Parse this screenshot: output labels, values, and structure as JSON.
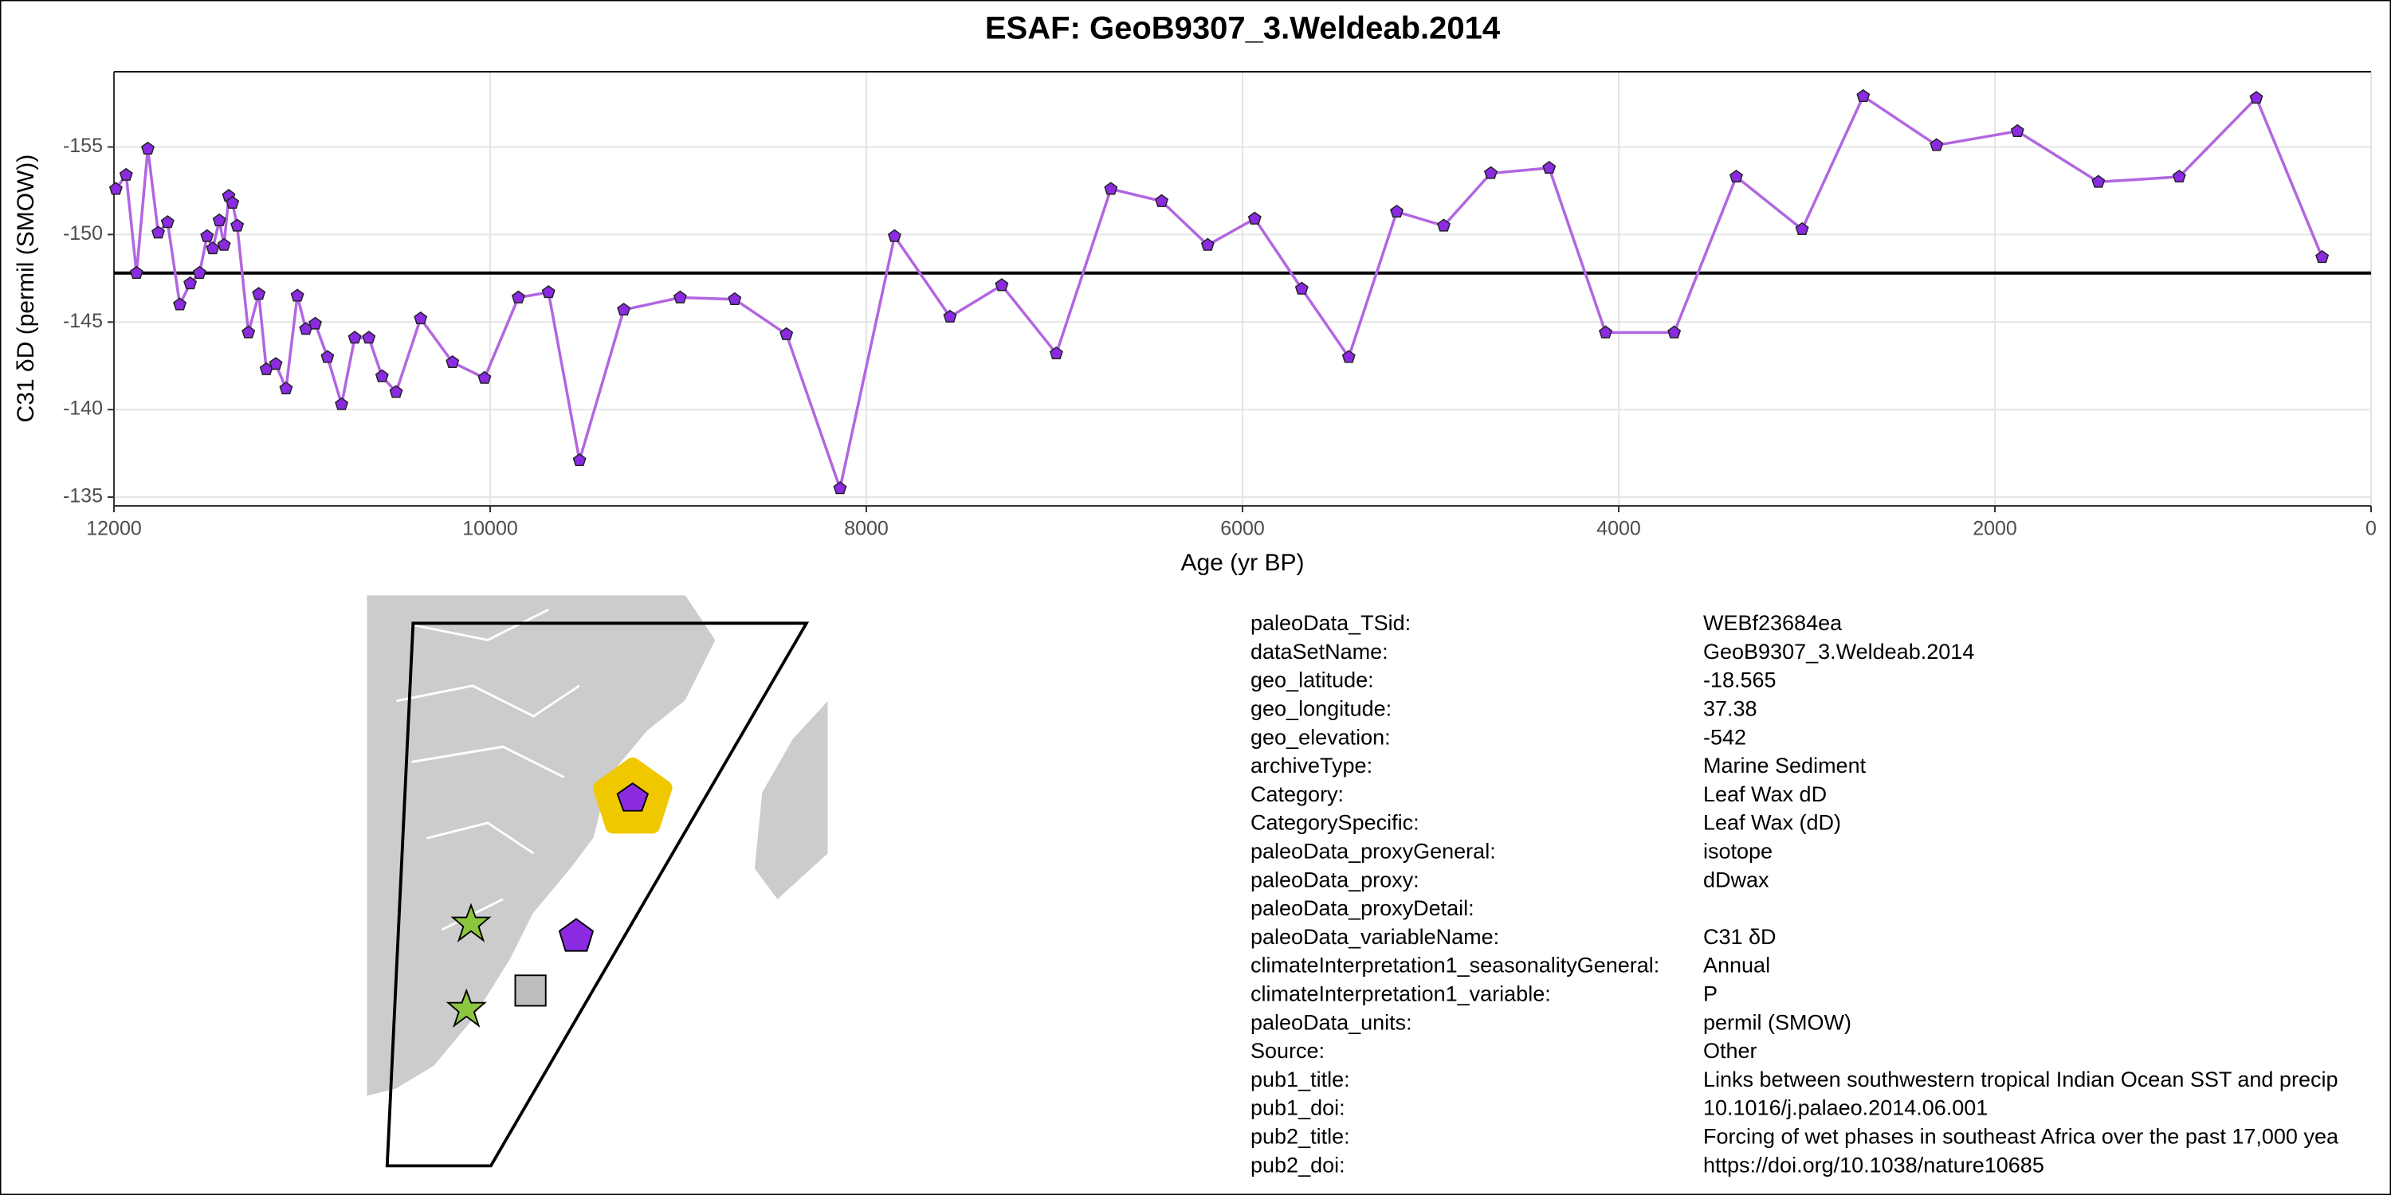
{
  "chart_data": {
    "type": "line",
    "title": "ESAF: GeoB9307_3.Weldeab.2014",
    "xlabel": "Age (yr BP)",
    "ylabel": "C31 δD (permil (SMOW))",
    "x": [
      11990,
      11935,
      11880,
      11820,
      11765,
      11715,
      11650,
      11595,
      11545,
      11505,
      11475,
      11440,
      11415,
      11390,
      11370,
      11345,
      11285,
      11230,
      11190,
      11140,
      11085,
      11025,
      10980,
      10930,
      10865,
      10790,
      10720,
      10645,
      10575,
      10500,
      10370,
      10200,
      10030,
      9850,
      9690,
      9525,
      9290,
      8990,
      8700,
      8425,
      8140,
      7850,
      7555,
      7280,
      6990,
      6700,
      6430,
      6185,
      5935,
      5685,
      5435,
      5180,
      4930,
      4680,
      4370,
      4070,
      3705,
      3375,
      3025,
      2700,
      2310,
      1880,
      1450,
      1020,
      610,
      260
    ],
    "series": [
      {
        "color": "#b266e0",
        "marker_color": "#8a2be2",
        "values": [
          -152.6,
          -153.4,
          -147.8,
          -154.9,
          -150.1,
          -150.7,
          -146.0,
          -147.2,
          -147.8,
          -149.9,
          -149.2,
          -150.8,
          -149.4,
          -152.2,
          -151.8,
          -150.5,
          -144.4,
          -146.6,
          -142.3,
          -142.6,
          -141.2,
          -146.5,
          -144.6,
          -144.9,
          -143.0,
          -140.3,
          -144.1,
          -144.1,
          -141.9,
          -141.0,
          -145.2,
          -142.7,
          -141.8,
          -146.4,
          -146.7,
          -137.1,
          -145.7,
          -146.4,
          -146.3,
          -144.3,
          -135.5,
          -149.9,
          -145.3,
          -147.1,
          -143.2,
          -152.6,
          -151.9,
          -149.4,
          -150.9,
          -146.9,
          -143.0,
          -151.3,
          -150.5,
          -153.5,
          -153.8,
          -144.4,
          -144.4,
          -153.3,
          -150.3,
          -157.9,
          -155.1,
          -155.9,
          -153.0,
          -153.3,
          -157.8,
          -148.7
        ]
      }
    ],
    "hline": -147.8,
    "hline_color": "#000000",
    "xlim": [
      12000,
      0
    ],
    "xticks": [
      12000,
      10000,
      8000,
      6000,
      4000,
      2000,
      0
    ],
    "ylim": [
      -134.5,
      -159.3
    ],
    "yticks": [
      -155,
      -150,
      -145,
      -140,
      -135
    ],
    "grid": true
  },
  "metadata": {
    "rows": [
      [
        "paleoData_TSid:",
        "WEBf23684ea"
      ],
      [
        "dataSetName:",
        "GeoB9307_3.Weldeab.2014"
      ],
      [
        "geo_latitude:",
        "-18.565"
      ],
      [
        "geo_longitude:",
        "37.38"
      ],
      [
        "geo_elevation:",
        "-542"
      ],
      [
        "archiveType:",
        "Marine Sediment"
      ],
      [
        "Category:",
        "Leaf Wax dD"
      ],
      [
        "CategorySpecific:",
        "Leaf Wax (dD)"
      ],
      [
        "paleoData_proxyGeneral:",
        "isotope"
      ],
      [
        "paleoData_proxy:",
        "dDwax"
      ],
      [
        "paleoData_proxyDetail:"
      ],
      [
        "paleoData_variableName:",
        "C31 δD"
      ],
      [
        "climateInterpretation1_seasonalityGeneral:",
        "Annual"
      ],
      [
        "climateInterpretation1_variable:",
        "P"
      ],
      [
        "paleoData_units:",
        "permil (SMOW)"
      ],
      [
        "Source:",
        "Other"
      ],
      [
        "pub1_title:",
        "Links between southwestern tropical Indian Ocean SST and precip"
      ],
      [
        "pub1_doi:",
        "10.1016/j.palaeo.2014.06.001"
      ],
      [
        "pub2_title:",
        "Forcing of wet phases in southeast Africa over the past 17,000 yea"
      ],
      [
        "pub2_doi:",
        "https://doi.org/10.1038/nature10685"
      ]
    ]
  }
}
